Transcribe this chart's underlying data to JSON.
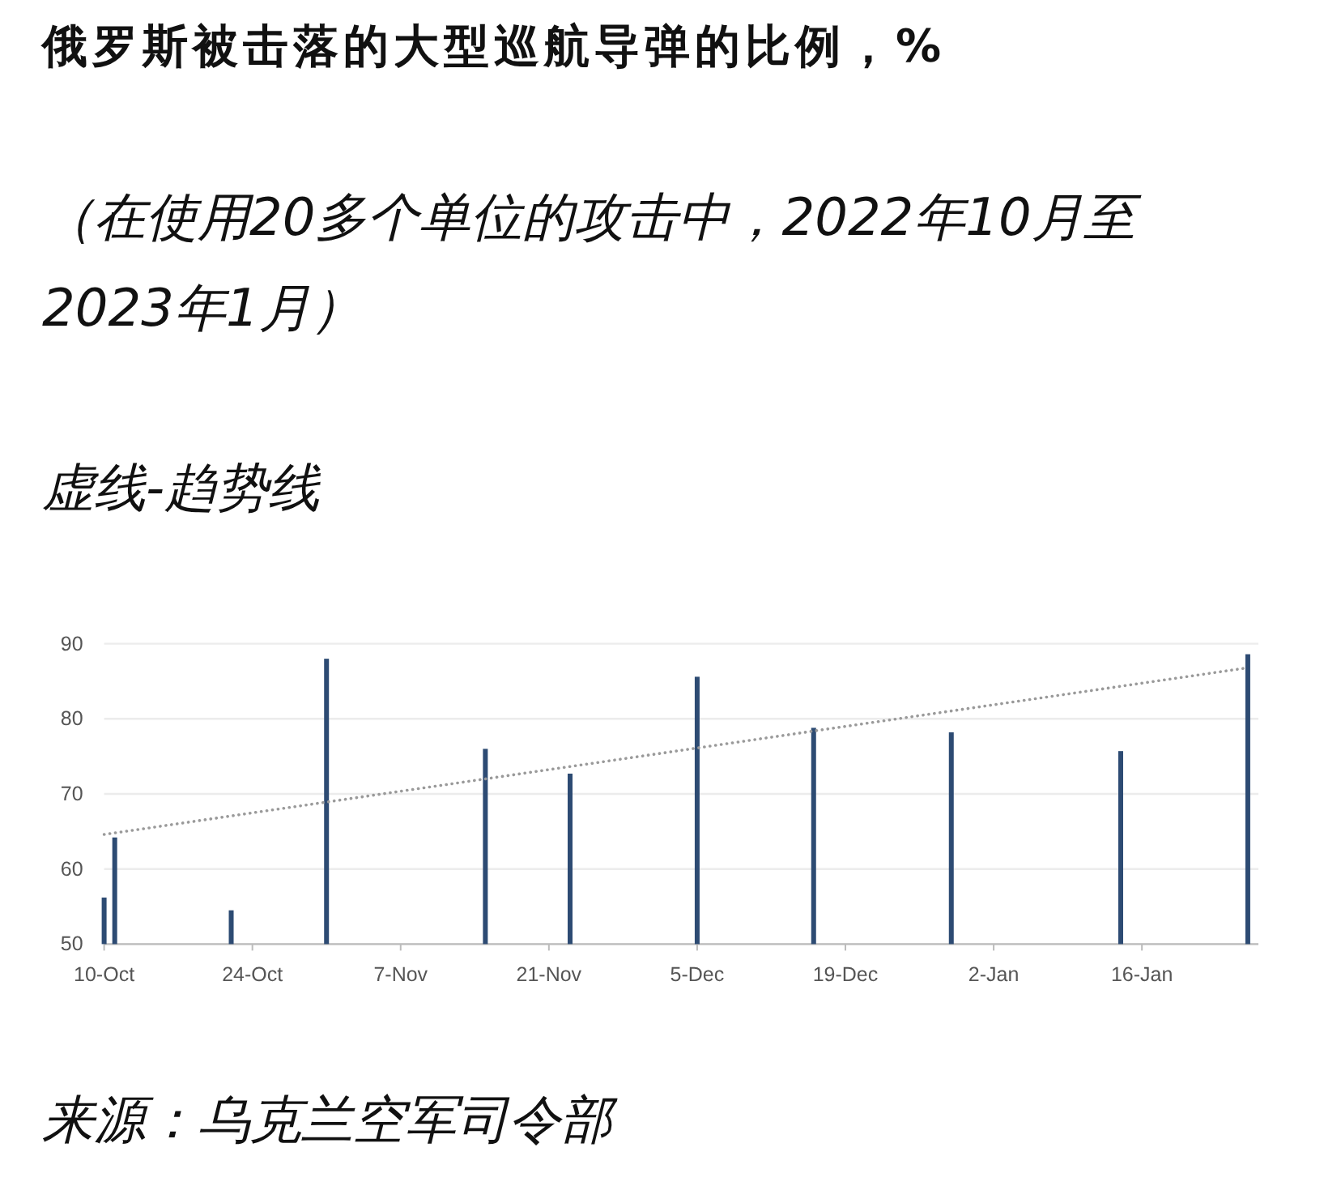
{
  "chart_data": {
    "type": "bar",
    "title": "俄罗斯被击落的大型巡航导弹的比例，%",
    "subtitle": "（在使用20多个单位的攻击中，2022年10月至2023年1月）",
    "annotations": [
      "虚线-趋势线",
      "来源：乌克兰空军司令部"
    ],
    "x": [
      "2022-10-10",
      "2022-10-11",
      "2022-10-22",
      "2022-10-31",
      "2022-11-15",
      "2022-11-23",
      "2022-12-05",
      "2022-12-16",
      "2022-12-29",
      "2023-01-14",
      "2023-01-26"
    ],
    "series": [
      {
        "color": "#2d4b73",
        "values": [
          56.2,
          64.2,
          54.5,
          88.0,
          76.0,
          72.7,
          85.6,
          78.8,
          78.2,
          75.7,
          88.6
        ]
      },
      {
        "type": "line",
        "x": [
          "2022-10-10",
          "2023-01-26"
        ],
        "values": [
          64.6,
          86.8
        ],
        "color": "#9a9a9a",
        "line_style": "dotted"
      }
    ],
    "xlim": [
      "2022-10-10",
      "2023-01-27"
    ],
    "xticks": [
      {
        "value": "2022-10-10",
        "label": "10-Oct"
      },
      {
        "value": "2022-10-24",
        "label": "24-Oct"
      },
      {
        "value": "2022-11-07",
        "label": "7-Nov"
      },
      {
        "value": "2022-11-21",
        "label": "21-Nov"
      },
      {
        "value": "2022-12-05",
        "label": "5-Dec"
      },
      {
        "value": "2022-12-19",
        "label": "19-Dec"
      },
      {
        "value": "2023-01-02",
        "label": "2-Jan"
      },
      {
        "value": "2023-01-16",
        "label": "16-Jan"
      }
    ],
    "ylim": [
      50,
      90
    ],
    "yticks": [
      50,
      60,
      70,
      80,
      90
    ],
    "grid": "y"
  }
}
